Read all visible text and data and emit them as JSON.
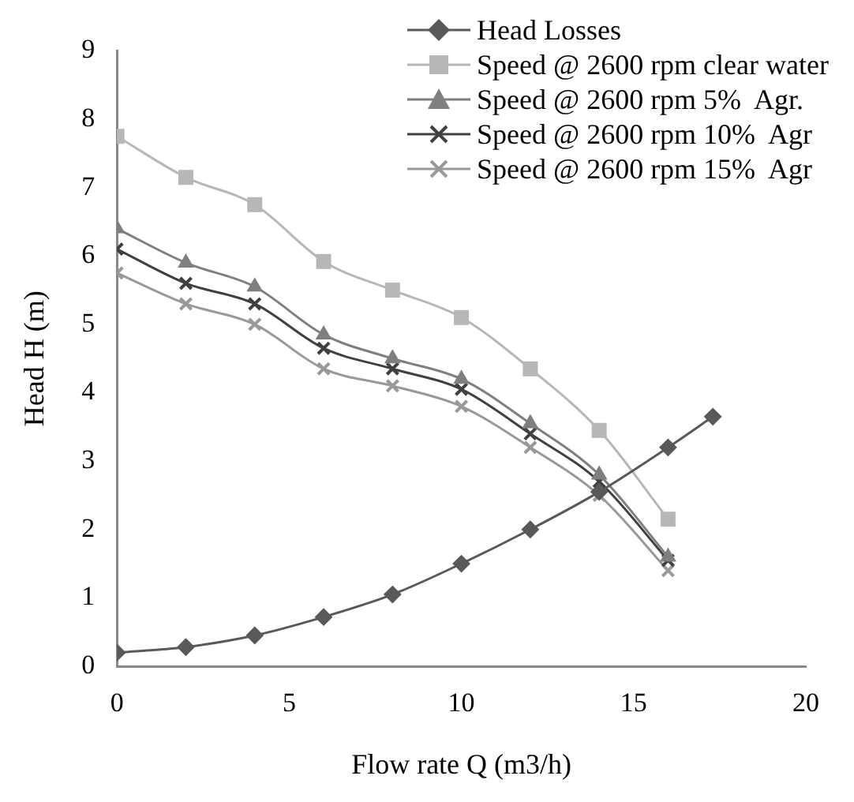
{
  "chart_data": {
    "type": "line",
    "xlabel": "Flow rate Q (m3/h)",
    "ylabel": "Head H (m)",
    "xlim": [
      0,
      20
    ],
    "xticks": [
      0,
      5,
      10,
      15,
      20
    ],
    "ylim": [
      0,
      9
    ],
    "yticks": [
      0,
      1,
      2,
      3,
      4,
      5,
      6,
      7,
      8,
      9
    ],
    "grid": false,
    "legend": "top right",
    "series": [
      {
        "name": "Head Losses",
        "color": "#595959",
        "marker": "diamond",
        "x": [
          0,
          2,
          4,
          6,
          8,
          10,
          12,
          14,
          16,
          17.3
        ],
        "values": [
          0.2,
          0.28,
          0.45,
          0.72,
          1.05,
          1.5,
          2.0,
          2.55,
          3.2,
          3.65
        ]
      },
      {
        "name": "Speed @ 2600 rpm clear water",
        "color": "#b7b7b7",
        "marker": "square",
        "x": [
          0,
          2,
          4,
          6,
          8,
          10,
          12,
          14,
          16
        ],
        "values": [
          7.75,
          7.15,
          6.75,
          5.92,
          5.5,
          5.1,
          4.35,
          3.45,
          2.15
        ]
      },
      {
        "name": "Speed @ 2600 rpm 5%  Agr.",
        "color": "#7f7f7f",
        "marker": "triangle",
        "x": [
          0,
          2,
          4,
          6,
          8,
          10,
          12,
          14,
          16
        ],
        "values": [
          6.4,
          5.9,
          5.55,
          4.85,
          4.5,
          4.2,
          3.55,
          2.8,
          1.6
        ]
      },
      {
        "name": "Speed @ 2600 rpm 10%  Agr",
        "color": "#404040",
        "marker": "cross",
        "x": [
          0,
          2,
          4,
          6,
          8,
          10,
          12,
          14,
          16
        ],
        "values": [
          6.1,
          5.6,
          5.3,
          4.65,
          4.35,
          4.05,
          3.4,
          2.7,
          1.55
        ]
      },
      {
        "name": "Speed @ 2600 rpm 15%  Agr",
        "color": "#999999",
        "marker": "cross",
        "x": [
          0,
          2,
          4,
          6,
          8,
          10,
          12,
          14,
          16
        ],
        "values": [
          5.75,
          5.3,
          5.0,
          4.35,
          4.1,
          3.8,
          3.2,
          2.5,
          1.4
        ]
      }
    ]
  }
}
